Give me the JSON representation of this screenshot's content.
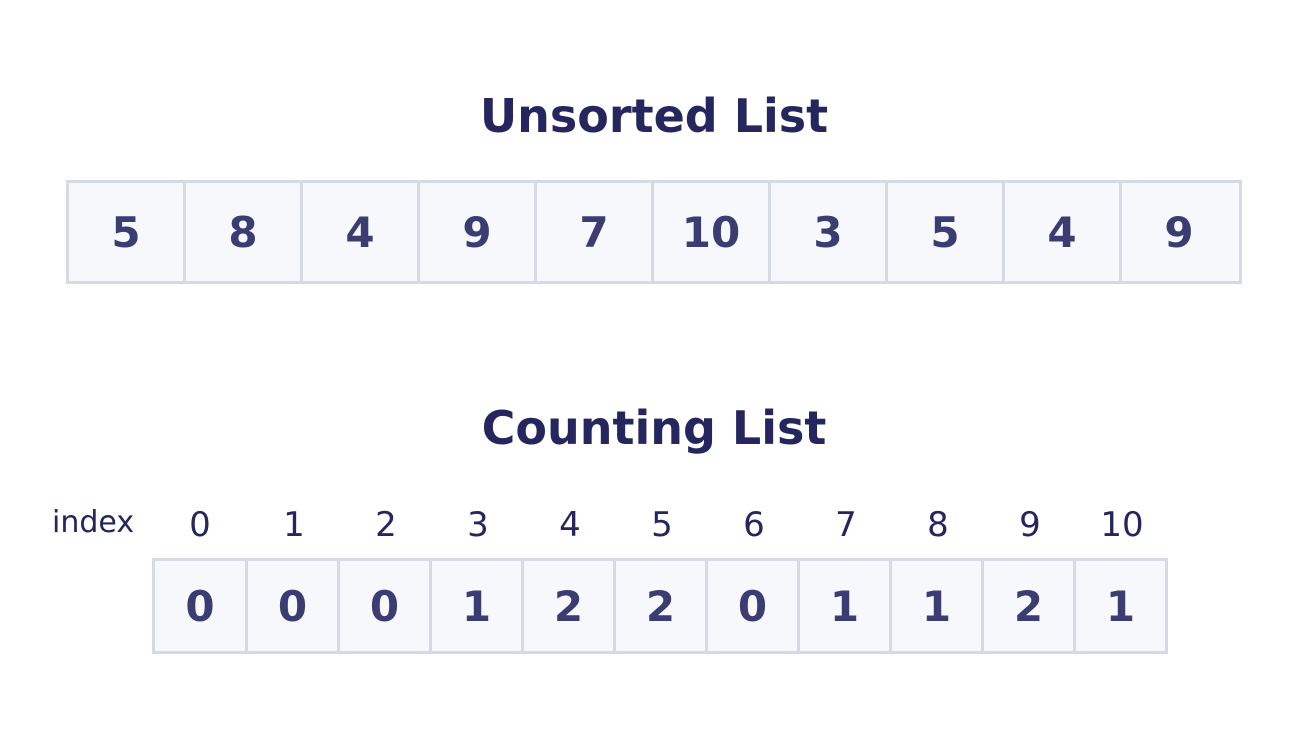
{
  "unsorted": {
    "title": "Unsorted List",
    "values": [
      "5",
      "8",
      "4",
      "9",
      "7",
      "10",
      "3",
      "5",
      "4",
      "9"
    ]
  },
  "counting": {
    "title": "Counting List",
    "index_label": "index",
    "indices": [
      "0",
      "1",
      "2",
      "3",
      "4",
      "5",
      "6",
      "7",
      "8",
      "9",
      "10"
    ],
    "counts": [
      "0",
      "0",
      "0",
      "1",
      "2",
      "2",
      "0",
      "1",
      "1",
      "2",
      "1"
    ]
  },
  "colors": {
    "text": "#25265e",
    "cell_text": "#3b3d72",
    "cell_fill": "#f7f8fc",
    "cell_border": "#d5dae5"
  }
}
